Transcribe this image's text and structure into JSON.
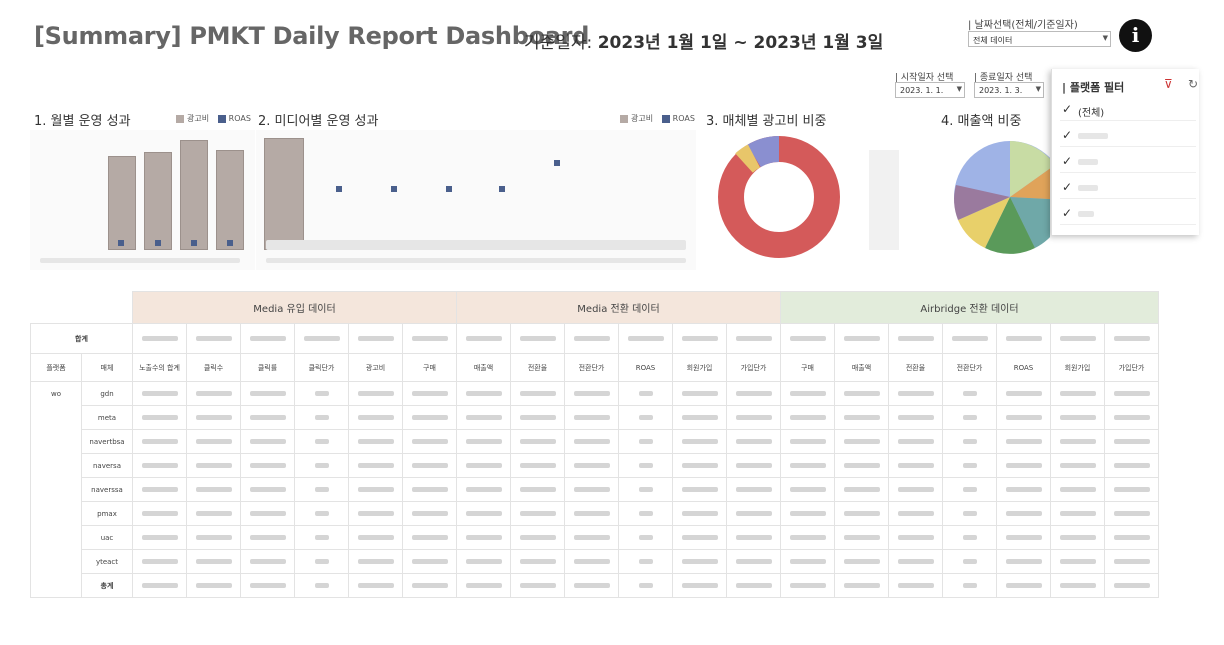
{
  "header": {
    "title": "[Summary] PMKT Daily Report Dashboard",
    "date_label": "기준일자:",
    "date_range": "2023년 1월 1일 ~ 2023년 1월 3일"
  },
  "controls": {
    "date_select_label": "| 날짜선택(전체/기준일자)",
    "date_select_value": "전체 데이터",
    "start_label": "| 시작일자 선택",
    "start_value": "2023. 1. 1.",
    "end_label": "| 종료일자 선택",
    "end_value": "2023. 1. 3."
  },
  "info_button": "i",
  "sections": {
    "s1": "1. 월별 운영 성과",
    "s2": "2. 미디어별 운영 성과",
    "s3": "3. 매체별 광고비 비중",
    "s4": "4. 매출액 비중"
  },
  "legend": {
    "spend": "광고비",
    "roas": "ROAS",
    "spend_color": "#b5aaa5",
    "roas_color": "#4a5f8c"
  },
  "filter_panel": {
    "title": "| 플랫폼 필터",
    "items": [
      "(전체)",
      "",
      "",
      "",
      ""
    ]
  },
  "table": {
    "group_headers": [
      "Media 유입 데이터",
      "Media 전환 데이터",
      "Airbridge 전환 데이터"
    ],
    "total_label": "합계",
    "row_headers": [
      "플랫폼",
      "매체"
    ],
    "columns": [
      "노출수의 합계",
      "클릭수",
      "클릭률",
      "클릭단가",
      "광고비",
      "구매",
      "매출액",
      "전환율",
      "전환단가",
      "ROAS",
      "회원가입",
      "가입단가",
      "구매",
      "매출액",
      "전환율",
      "전환단가",
      "ROAS",
      "회원가입",
      "가입단가"
    ],
    "platform": "wo",
    "media": [
      "gdn",
      "meta",
      "navertbsa",
      "naversa",
      "naverssa",
      "pmax",
      "uac",
      "yteact",
      "총계"
    ]
  }
}
